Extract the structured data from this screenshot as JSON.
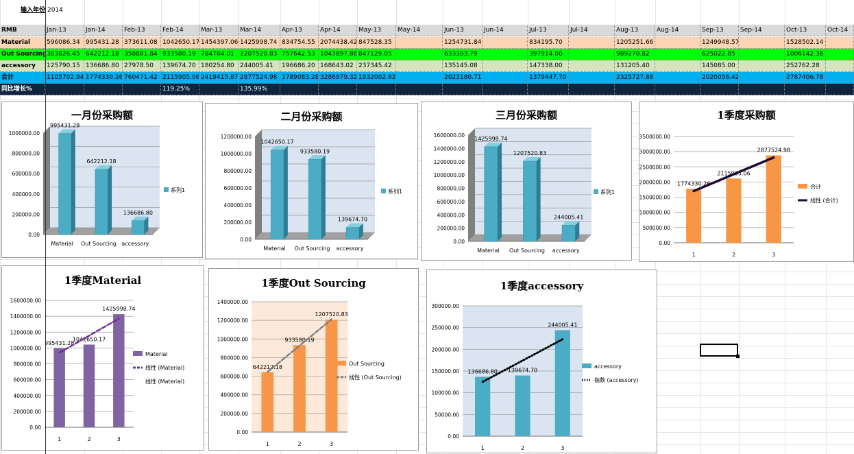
{
  "input": {
    "label": "输入年份",
    "value": "2014"
  },
  "table": {
    "header_label": "RMB",
    "months": [
      "Jan-13",
      "Jan-14",
      "Feb-13",
      "Feb-14",
      "Mar-13",
      "Mar-14",
      "Apr-13",
      "Apr-14",
      "May-13",
      "May-14",
      "Jun-13",
      "Jun-14",
      "Jul-13",
      "Jul-14",
      "Aug-13",
      "Aug-14",
      "Sep-13",
      "Sep-14",
      "Oct-13",
      "Oct-14"
    ],
    "rows": [
      {
        "label": "Material",
        "color": "#fbd5b5",
        "cells": [
          "596086.34",
          "995431.28",
          "373611.08",
          "1042650.17",
          "1454397.06",
          "1425998.74",
          "834754.55",
          "2074438.42",
          "847528.35",
          "",
          "1254731.84",
          "",
          "834195.70",
          "",
          "1205251.66",
          "",
          "1249948.57",
          "",
          "1528502.14",
          ""
        ]
      },
      {
        "label": "Out Sourcing",
        "color": "#00ff00",
        "cells": [
          "383826.45",
          "642212.18",
          "358881.84",
          "933580.19",
          "784764.01",
          "1207520.83",
          "757642.53",
          "1043897.88",
          "847129.05",
          "",
          "633303.79",
          "",
          "397914.00",
          "",
          "989270.82",
          "",
          "625022.85",
          "",
          "1006142.36",
          ""
        ]
      },
      {
        "label": "accessory",
        "color": "#d6e3bc",
        "cells": [
          "125790.15",
          "136686.80",
          "27978.50",
          "139674.70",
          "180254.80",
          "244005.41",
          "196686.20",
          "168643.02",
          "237345.42",
          "",
          "135145.08",
          "",
          "147338.00",
          "",
          "131205.40",
          "",
          "145085.00",
          "",
          "252762.28",
          ""
        ]
      },
      {
        "label": "合计",
        "color": "#00b0f0",
        "cells": [
          "1105702.94",
          "1774330.26",
          "760471.42",
          "2115905.06",
          "2419415.87",
          "2877524.98",
          "1789083.28",
          "3286979.32",
          "1932002.82",
          "",
          "2023180.71",
          "",
          "1379447.70",
          "",
          "2325727.88",
          "",
          "2020056.42",
          "",
          "2787406.78",
          ""
        ]
      },
      {
        "label": "同比增长%",
        "color": "#0f243e",
        "text_color": "#ffffff",
        "cells": [
          "",
          "",
          "",
          "119.25%",
          "",
          "135.99%",
          "",
          "",
          "",
          "",
          "",
          "",
          "",
          "",
          "",
          "",
          "",
          "",
          "",
          ""
        ]
      }
    ]
  },
  "chart_data": [
    {
      "type": "bar",
      "title": "一月份采购额",
      "categories": [
        "Material",
        "Out Sourcing",
        "accessory"
      ],
      "series": [
        {
          "name": "系列1",
          "values": [
            995431.28,
            642212.18,
            136686.8
          ]
        }
      ],
      "data_labels": [
        "995431.28",
        "642212.18",
        "136686.80"
      ],
      "yticks": [
        "0.00",
        "200000.00",
        "400000.00",
        "600000.00",
        "800000.00",
        "1000000.00"
      ],
      "ylim": [
        0,
        1000000
      ],
      "color": "#4bacc6",
      "legend": "right",
      "style": "3d"
    },
    {
      "type": "bar",
      "title": "二月份采购额",
      "categories": [
        "Material",
        "Out Sourcing",
        "accessory"
      ],
      "series": [
        {
          "name": "系列1",
          "values": [
            1042650.17,
            933580.19,
            139674.7
          ]
        }
      ],
      "data_labels": [
        "1042650.17",
        "933580.19",
        "139674.70"
      ],
      "yticks": [
        "0.00",
        "200000.00",
        "400000.00",
        "600000.00",
        "800000.00",
        "1000000.00",
        "1200000.00"
      ],
      "ylim": [
        0,
        1200000
      ],
      "color": "#4bacc6",
      "legend": "right",
      "style": "3d"
    },
    {
      "type": "bar",
      "title": "三月份采购额",
      "categories": [
        "Material",
        "Out Sourcing",
        "accessory"
      ],
      "series": [
        {
          "name": "系列1",
          "values": [
            1425998.74,
            1207520.83,
            244005.41
          ]
        }
      ],
      "data_labels": [
        "1425998.74",
        "1207520.83",
        "244005.41"
      ],
      "yticks": [
        "0.00",
        "200000.00",
        "400000.00",
        "600000.00",
        "800000.00",
        "1000000.00",
        "1200000.00",
        "1400000.00",
        "1600000.00"
      ],
      "ylim": [
        0,
        1600000
      ],
      "color": "#4bacc6",
      "legend": "right",
      "style": "3d"
    },
    {
      "type": "bar",
      "title": "1季度采购额",
      "categories": [
        "1",
        "2",
        "3"
      ],
      "series": [
        {
          "name": "合计",
          "values": [
            1774330.26,
            2115905.06,
            2877524.98
          ]
        }
      ],
      "data_labels": [
        "1774330.26",
        "2115905.06",
        "2877524.98"
      ],
      "trendline": {
        "name": "线性 (合计)",
        "kind": "linear",
        "color": "#1f0a33",
        "dash": "solid"
      },
      "yticks": [
        "0.00",
        "500000.00",
        "1000000.00",
        "1500000.00",
        "2000000.00",
        "2500000.00",
        "3000000.00",
        "3500000.00"
      ],
      "ylim": [
        0,
        3500000
      ],
      "color": "#f79646",
      "legend": "right"
    },
    {
      "type": "bar",
      "title": "1季度Material",
      "categories": [
        "1",
        "2",
        "3"
      ],
      "series": [
        {
          "name": "Material",
          "values": [
            995431.28,
            1042650.17,
            1425998.74
          ]
        }
      ],
      "data_labels": [
        "995431.28",
        "1042650.17",
        "1425998.74"
      ],
      "trendline": {
        "name": "线性 (Material)",
        "kind": "linear",
        "color": "#7030a0",
        "dash": "dash"
      },
      "extra_legend": "线性 (Material)",
      "yticks": [
        "0.00",
        "200000.00",
        "400000.00",
        "600000.00",
        "800000.00",
        "1000000.00",
        "1200000.00",
        "1400000.00",
        "1600000.00"
      ],
      "ylim": [
        0,
        1600000
      ],
      "color": "#8064a2",
      "legend": "right"
    },
    {
      "type": "bar",
      "title": "1季度Out Sourcing",
      "categories": [
        "1",
        "2",
        "3"
      ],
      "series": [
        {
          "name": "Out Sourcing",
          "values": [
            642212.18,
            933580.19,
            1207520.83
          ]
        }
      ],
      "data_labels": [
        "642212.18",
        "933580.19",
        "1207520.83"
      ],
      "trendline": {
        "name": "线性 (Out Sourcing)",
        "kind": "linear",
        "color": "#808080",
        "dash": "dash"
      },
      "yticks": [
        "0.00",
        "200000.00",
        "400000.00",
        "600000.00",
        "800000.00",
        "1000000.00",
        "1200000.00",
        "1400000.00"
      ],
      "ylim": [
        0,
        1400000
      ],
      "color": "#f79646",
      "legend": "right",
      "plot_bg": "#fde9d9"
    },
    {
      "type": "bar",
      "title": "1季度accessory",
      "categories": [
        "1",
        "2",
        "3"
      ],
      "series": [
        {
          "name": "accessory",
          "values": [
            136686.8,
            139674.7,
            244005.41
          ]
        }
      ],
      "data_labels": [
        "136686.80",
        "139674.70",
        "244005.41"
      ],
      "trendline": {
        "name": "指数 (accessory)",
        "kind": "exponential",
        "color": "#000000",
        "dash": "dot"
      },
      "yticks": [
        "0.00",
        "50000.00",
        "100000.00",
        "150000.00",
        "200000.00",
        "250000.00",
        "300000.00"
      ],
      "ylim": [
        0,
        300000
      ],
      "color": "#4bacc6",
      "legend": "right",
      "plot_bg": "#dbe5f1"
    }
  ]
}
